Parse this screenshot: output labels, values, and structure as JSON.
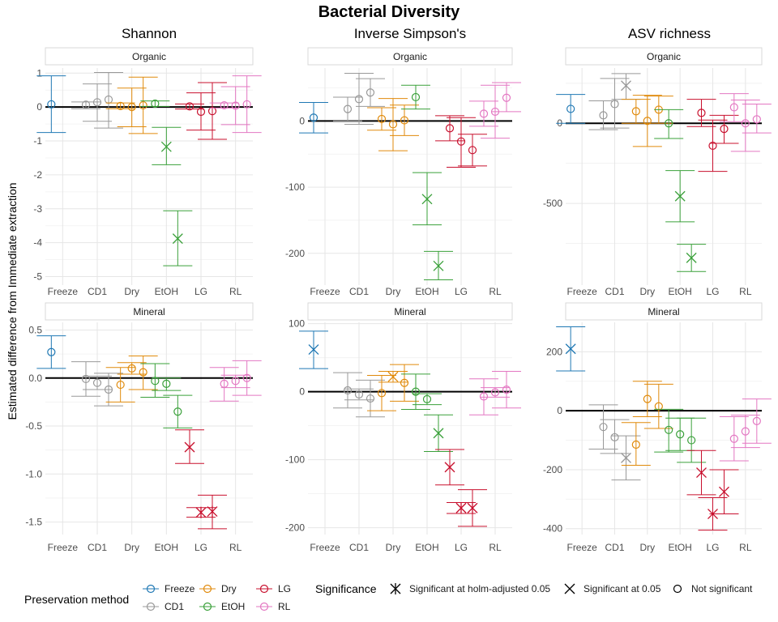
{
  "title": "Bacterial Diversity",
  "ylabel": "Estimated difference from Immediate extraction",
  "colors": {
    "Freeze": "#1f78b4",
    "CD1": "#999999",
    "Dry": "#e08a0b",
    "EtOH": "#3aa03a",
    "LG": "#c8102e",
    "RL": "#e377c2"
  },
  "legend": {
    "method_title": "Preservation method",
    "methods": [
      "Freeze",
      "Dry",
      "LG",
      "CD1",
      "EtOH",
      "RL"
    ],
    "significance_title": "Significance",
    "significance": [
      {
        "shape": "asterisk",
        "label": "Significant at holm-adjusted 0.05"
      },
      {
        "shape": "cross",
        "label": "Significant at 0.05"
      },
      {
        "shape": "circle",
        "label": "Not significant"
      }
    ]
  },
  "chart_data": [
    {
      "type": "scatter",
      "metric": "Shannon",
      "soil": "Organic",
      "categories": [
        "Freeze",
        "CD1",
        "Dry",
        "EtOH",
        "LG",
        "RL"
      ],
      "yticks": [
        1,
        0,
        -1,
        -2,
        -3,
        -4,
        -5
      ],
      "ylim": [
        -5.25,
        1.15
      ],
      "points": [
        {
          "method": "Freeze",
          "x": "Freeze",
          "y": 0.08,
          "lo": -0.75,
          "hi": 0.92,
          "sig": "ns"
        },
        {
          "method": "CD1",
          "x": "CD1",
          "y": 0.07,
          "lo": -0.05,
          "hi": 0.15,
          "sig": "ns"
        },
        {
          "method": "CD1",
          "x": "CD1",
          "y": 0.14,
          "lo": -0.42,
          "hi": 0.68,
          "sig": "ns"
        },
        {
          "method": "CD1",
          "x": "CD1",
          "y": 0.22,
          "lo": -0.62,
          "hi": 1.02,
          "sig": "ns"
        },
        {
          "method": "Dry",
          "x": "Dry",
          "y": 0.03,
          "lo": -0.05,
          "hi": 0.12,
          "sig": "ns"
        },
        {
          "method": "Dry",
          "x": "Dry",
          "y": 0.0,
          "lo": -0.58,
          "hi": 0.56,
          "sig": "ns"
        },
        {
          "method": "Dry",
          "x": "Dry",
          "y": 0.05,
          "lo": -0.78,
          "hi": 0.88,
          "sig": "ns"
        },
        {
          "method": "EtOH",
          "x": "EtOH",
          "y": 0.1,
          "lo": 0.02,
          "hi": 0.18,
          "sig": "ns"
        },
        {
          "method": "EtOH",
          "x": "EtOH",
          "y": -1.17,
          "lo": -1.7,
          "hi": -0.6,
          "sig": "p05"
        },
        {
          "method": "EtOH",
          "x": "EtOH",
          "y": -3.88,
          "lo": -4.68,
          "hi": -3.06,
          "sig": "p05"
        },
        {
          "method": "LG",
          "x": "LG",
          "y": 0.02,
          "lo": -0.06,
          "hi": 0.09,
          "sig": "ns"
        },
        {
          "method": "LG",
          "x": "LG",
          "y": -0.14,
          "lo": -0.68,
          "hi": 0.42,
          "sig": "ns"
        },
        {
          "method": "LG",
          "x": "LG",
          "y": -0.12,
          "lo": -0.95,
          "hi": 0.72,
          "sig": "ns"
        },
        {
          "method": "RL",
          "x": "RL",
          "y": 0.05,
          "lo": -0.03,
          "hi": 0.12,
          "sig": "ns"
        },
        {
          "method": "RL",
          "x": "RL",
          "y": 0.04,
          "lo": -0.52,
          "hi": 0.6,
          "sig": "ns"
        },
        {
          "method": "RL",
          "x": "RL",
          "y": 0.08,
          "lo": -0.75,
          "hi": 0.92,
          "sig": "ns"
        }
      ]
    },
    {
      "type": "scatter",
      "metric": "Inverse Simpson's",
      "soil": "Organic",
      "categories": [
        "Freeze",
        "CD1",
        "Dry",
        "EtOH",
        "LG",
        "RL"
      ],
      "yticks": [
        0,
        -100,
        -200
      ],
      "ylim": [
        -248,
        80
      ],
      "points": [
        {
          "method": "Freeze",
          "x": "Freeze",
          "y": 5,
          "lo": -18,
          "hi": 28,
          "sig": "ns"
        },
        {
          "method": "CD1",
          "x": "CD1",
          "y": 18,
          "lo": 0,
          "hi": 36,
          "sig": "ns"
        },
        {
          "method": "CD1",
          "x": "CD1",
          "y": 33,
          "lo": -5,
          "hi": 72,
          "sig": "ns"
        },
        {
          "method": "CD1",
          "x": "CD1",
          "y": 43,
          "lo": 22,
          "hi": 64,
          "sig": "ns"
        },
        {
          "method": "Dry",
          "x": "Dry",
          "y": 3,
          "lo": -14,
          "hi": 20,
          "sig": "ns"
        },
        {
          "method": "Dry",
          "x": "Dry",
          "y": -5,
          "lo": -45,
          "hi": 34,
          "sig": "ns"
        },
        {
          "method": "Dry",
          "x": "Dry",
          "y": 1,
          "lo": -22,
          "hi": 24,
          "sig": "ns"
        },
        {
          "method": "EtOH",
          "x": "EtOH",
          "y": 36,
          "lo": 18,
          "hi": 54,
          "sig": "ns"
        },
        {
          "method": "EtOH",
          "x": "EtOH",
          "y": -118,
          "lo": -157,
          "hi": -78,
          "sig": "p05"
        },
        {
          "method": "EtOH",
          "x": "EtOH",
          "y": -219,
          "lo": -240,
          "hi": -197,
          "sig": "p05"
        },
        {
          "method": "LG",
          "x": "LG",
          "y": -11,
          "lo": -30,
          "hi": 8,
          "sig": "ns"
        },
        {
          "method": "LG",
          "x": "LG",
          "y": -31,
          "lo": -70,
          "hi": 5,
          "sig": "ns"
        },
        {
          "method": "LG",
          "x": "LG",
          "y": -44,
          "lo": -68,
          "hi": -20,
          "sig": "ns"
        },
        {
          "method": "RL",
          "x": "RL",
          "y": 11,
          "lo": -8,
          "hi": 30,
          "sig": "ns"
        },
        {
          "method": "RL",
          "x": "RL",
          "y": 14,
          "lo": -26,
          "hi": 54,
          "sig": "ns"
        },
        {
          "method": "RL",
          "x": "RL",
          "y": 35,
          "lo": 14,
          "hi": 58,
          "sig": "ns"
        }
      ]
    },
    {
      "type": "scatter",
      "metric": "ASV richness",
      "soil": "Organic",
      "categories": [
        "Freeze",
        "CD1",
        "Dry",
        "EtOH",
        "LG",
        "RL"
      ],
      "yticks": [
        0,
        -500
      ],
      "ylim": [
        -1010,
        345
      ],
      "points": [
        {
          "method": "Freeze",
          "x": "Freeze",
          "y": 90,
          "lo": 0,
          "hi": 180,
          "sig": "ns"
        },
        {
          "method": "CD1",
          "x": "CD1",
          "y": 50,
          "lo": -40,
          "hi": 140,
          "sig": "ns"
        },
        {
          "method": "CD1",
          "x": "CD1",
          "y": 120,
          "lo": -30,
          "hi": 280,
          "sig": "ns"
        },
        {
          "method": "CD1",
          "x": "CD1",
          "y": 235,
          "lo": 150,
          "hi": 310,
          "sig": "p05"
        },
        {
          "method": "Dry",
          "x": "Dry",
          "y": 75,
          "lo": 0,
          "hi": 150,
          "sig": "ns"
        },
        {
          "method": "Dry",
          "x": "Dry",
          "y": 15,
          "lo": -145,
          "hi": 175,
          "sig": "ns"
        },
        {
          "method": "Dry",
          "x": "Dry",
          "y": 85,
          "lo": 0,
          "hi": 170,
          "sig": "ns"
        },
        {
          "method": "EtOH",
          "x": "EtOH",
          "y": 0,
          "lo": -95,
          "hi": 85,
          "sig": "ns"
        },
        {
          "method": "EtOH",
          "x": "EtOH",
          "y": -455,
          "lo": -615,
          "hi": -295,
          "sig": "p05"
        },
        {
          "method": "EtOH",
          "x": "EtOH",
          "y": -840,
          "lo": -925,
          "hi": -755,
          "sig": "p05"
        },
        {
          "method": "LG",
          "x": "LG",
          "y": 65,
          "lo": -20,
          "hi": 150,
          "sig": "ns"
        },
        {
          "method": "LG",
          "x": "LG",
          "y": -140,
          "lo": -300,
          "hi": 20,
          "sig": "ns"
        },
        {
          "method": "LG",
          "x": "LG",
          "y": -35,
          "lo": -125,
          "hi": 50,
          "sig": "ns"
        },
        {
          "method": "RL",
          "x": "RL",
          "y": 100,
          "lo": 10,
          "hi": 185,
          "sig": "ns"
        },
        {
          "method": "RL",
          "x": "RL",
          "y": 0,
          "lo": -175,
          "hi": 145,
          "sig": "ns"
        },
        {
          "method": "RL",
          "x": "RL",
          "y": 25,
          "lo": -60,
          "hi": 120,
          "sig": "ns"
        }
      ]
    },
    {
      "type": "scatter",
      "metric": "Shannon",
      "soil": "Mineral",
      "categories": [
        "Freeze",
        "CD1",
        "Dry",
        "EtOH",
        "LG",
        "RL"
      ],
      "yticks": [
        0.5,
        0.0,
        -0.5,
        -1.0,
        -1.5
      ],
      "yticklabels": [
        "0.5",
        "0.0",
        "-0.5",
        "-1.0",
        "-1.5"
      ],
      "ylim": [
        -1.63,
        0.58
      ],
      "points": [
        {
          "method": "Freeze",
          "x": "Freeze",
          "y": 0.27,
          "lo": 0.1,
          "hi": 0.44,
          "sig": "ns"
        },
        {
          "method": "CD1",
          "x": "CD1",
          "y": -0.01,
          "lo": -0.19,
          "hi": 0.17,
          "sig": "ns"
        },
        {
          "method": "CD1",
          "x": "CD1",
          "y": -0.05,
          "lo": -0.12,
          "hi": 0.02,
          "sig": "ns"
        },
        {
          "method": "CD1",
          "x": "CD1",
          "y": -0.12,
          "lo": -0.29,
          "hi": 0.05,
          "sig": "ns"
        },
        {
          "method": "Dry",
          "x": "Dry",
          "y": -0.07,
          "lo": -0.25,
          "hi": 0.11,
          "sig": "ns"
        },
        {
          "method": "Dry",
          "x": "Dry",
          "y": 0.1,
          "lo": 0.04,
          "hi": 0.16,
          "sig": "ns"
        },
        {
          "method": "Dry",
          "x": "Dry",
          "y": 0.06,
          "lo": -0.12,
          "hi": 0.23,
          "sig": "ns"
        },
        {
          "method": "EtOH",
          "x": "EtOH",
          "y": -0.03,
          "lo": -0.2,
          "hi": 0.15,
          "sig": "ns"
        },
        {
          "method": "EtOH",
          "x": "EtOH",
          "y": -0.06,
          "lo": -0.13,
          "hi": 0.0,
          "sig": "ns"
        },
        {
          "method": "EtOH",
          "x": "EtOH",
          "y": -0.35,
          "lo": -0.52,
          "hi": -0.18,
          "sig": "ns"
        },
        {
          "method": "LG",
          "x": "LG",
          "y": -0.72,
          "lo": -0.89,
          "hi": -0.54,
          "sig": "p05"
        },
        {
          "method": "LG",
          "x": "LG",
          "y": -1.4,
          "lo": -1.45,
          "hi": -1.35,
          "sig": "holm"
        },
        {
          "method": "LG",
          "x": "LG",
          "y": -1.39,
          "lo": -1.57,
          "hi": -1.22,
          "sig": "holm"
        },
        {
          "method": "RL",
          "x": "RL",
          "y": -0.06,
          "lo": -0.24,
          "hi": 0.11,
          "sig": "ns"
        },
        {
          "method": "RL",
          "x": "RL",
          "y": -0.03,
          "lo": -0.1,
          "hi": 0.03,
          "sig": "ns"
        },
        {
          "method": "RL",
          "x": "RL",
          "y": 0.0,
          "lo": -0.18,
          "hi": 0.18,
          "sig": "ns"
        }
      ]
    },
    {
      "type": "scatter",
      "metric": "Inverse Simpson's",
      "soil": "Mineral",
      "categories": [
        "Freeze",
        "CD1",
        "Dry",
        "EtOH",
        "LG",
        "RL"
      ],
      "yticks": [
        100,
        0,
        -100,
        -200
      ],
      "ylim": [
        -210,
        102
      ],
      "points": [
        {
          "method": "Freeze",
          "x": "Freeze",
          "y": 62,
          "lo": 34,
          "hi": 89,
          "sig": "p05"
        },
        {
          "method": "CD1",
          "x": "CD1",
          "y": 2,
          "lo": -24,
          "hi": 28,
          "sig": "ns"
        },
        {
          "method": "CD1",
          "x": "CD1",
          "y": -4,
          "lo": -12,
          "hi": 4,
          "sig": "ns"
        },
        {
          "method": "CD1",
          "x": "CD1",
          "y": -10,
          "lo": -37,
          "hi": 17,
          "sig": "ns"
        },
        {
          "method": "Dry",
          "x": "Dry",
          "y": -2,
          "lo": -28,
          "hi": 24,
          "sig": "ns"
        },
        {
          "method": "Dry",
          "x": "Dry",
          "y": 22,
          "lo": 14,
          "hi": 30,
          "sig": "p05"
        },
        {
          "method": "Dry",
          "x": "Dry",
          "y": 13,
          "lo": -14,
          "hi": 40,
          "sig": "ns"
        },
        {
          "method": "EtOH",
          "x": "EtOH",
          "y": 0,
          "lo": -26,
          "hi": 26,
          "sig": "ns"
        },
        {
          "method": "EtOH",
          "x": "EtOH",
          "y": -11,
          "lo": -19,
          "hi": -3,
          "sig": "ns"
        },
        {
          "method": "EtOH",
          "x": "EtOH",
          "y": -61,
          "lo": -88,
          "hi": -34,
          "sig": "p05"
        },
        {
          "method": "LG",
          "x": "LG",
          "y": -111,
          "lo": -137,
          "hi": -85,
          "sig": "p05"
        },
        {
          "method": "LG",
          "x": "LG",
          "y": -171,
          "lo": -179,
          "hi": -163,
          "sig": "holm"
        },
        {
          "method": "LG",
          "x": "LG",
          "y": -171,
          "lo": -198,
          "hi": -144,
          "sig": "holm"
        },
        {
          "method": "RL",
          "x": "RL",
          "y": -7,
          "lo": -34,
          "hi": 19,
          "sig": "ns"
        },
        {
          "method": "RL",
          "x": "RL",
          "y": -1,
          "lo": -8,
          "hi": 6,
          "sig": "ns"
        },
        {
          "method": "RL",
          "x": "RL",
          "y": 3,
          "lo": -24,
          "hi": 30,
          "sig": "ns"
        }
      ]
    },
    {
      "type": "scatter",
      "metric": "ASV richness",
      "soil": "Mineral",
      "categories": [
        "Freeze",
        "CD1",
        "Dry",
        "EtOH",
        "LG",
        "RL"
      ],
      "yticks": [
        200,
        0,
        -200,
        -400
      ],
      "ylim": [
        -420,
        300
      ],
      "points": [
        {
          "method": "Freeze",
          "x": "Freeze",
          "y": 210,
          "lo": 135,
          "hi": 285,
          "sig": "p05"
        },
        {
          "method": "CD1",
          "x": "CD1",
          "y": -55,
          "lo": -130,
          "hi": 20,
          "sig": "ns"
        },
        {
          "method": "CD1",
          "x": "CD1",
          "y": -90,
          "lo": -145,
          "hi": -30,
          "sig": "ns"
        },
        {
          "method": "CD1",
          "x": "CD1",
          "y": -160,
          "lo": -235,
          "hi": -85,
          "sig": "p05"
        },
        {
          "method": "Dry",
          "x": "Dry",
          "y": -115,
          "lo": -185,
          "hi": -40,
          "sig": "ns"
        },
        {
          "method": "Dry",
          "x": "Dry",
          "y": 40,
          "lo": -20,
          "hi": 100,
          "sig": "ns"
        },
        {
          "method": "Dry",
          "x": "Dry",
          "y": 15,
          "lo": -60,
          "hi": 90,
          "sig": "ns"
        },
        {
          "method": "EtOH",
          "x": "EtOH",
          "y": -65,
          "lo": -140,
          "hi": 5,
          "sig": "ns"
        },
        {
          "method": "EtOH",
          "x": "EtOH",
          "y": -80,
          "lo": -135,
          "hi": -25,
          "sig": "ns"
        },
        {
          "method": "EtOH",
          "x": "EtOH",
          "y": -100,
          "lo": -175,
          "hi": -25,
          "sig": "ns"
        },
        {
          "method": "LG",
          "x": "LG",
          "y": -210,
          "lo": -285,
          "hi": -135,
          "sig": "p05"
        },
        {
          "method": "LG",
          "x": "LG",
          "y": -350,
          "lo": -405,
          "hi": -295,
          "sig": "p05"
        },
        {
          "method": "LG",
          "x": "LG",
          "y": -275,
          "lo": -350,
          "hi": -200,
          "sig": "p05"
        },
        {
          "method": "RL",
          "x": "RL",
          "y": -95,
          "lo": -170,
          "hi": -20,
          "sig": "ns"
        },
        {
          "method": "RL",
          "x": "RL",
          "y": -70,
          "lo": -125,
          "hi": -15,
          "sig": "ns"
        },
        {
          "method": "RL",
          "x": "RL",
          "y": -35,
          "lo": -110,
          "hi": 40,
          "sig": "ns"
        }
      ]
    }
  ]
}
